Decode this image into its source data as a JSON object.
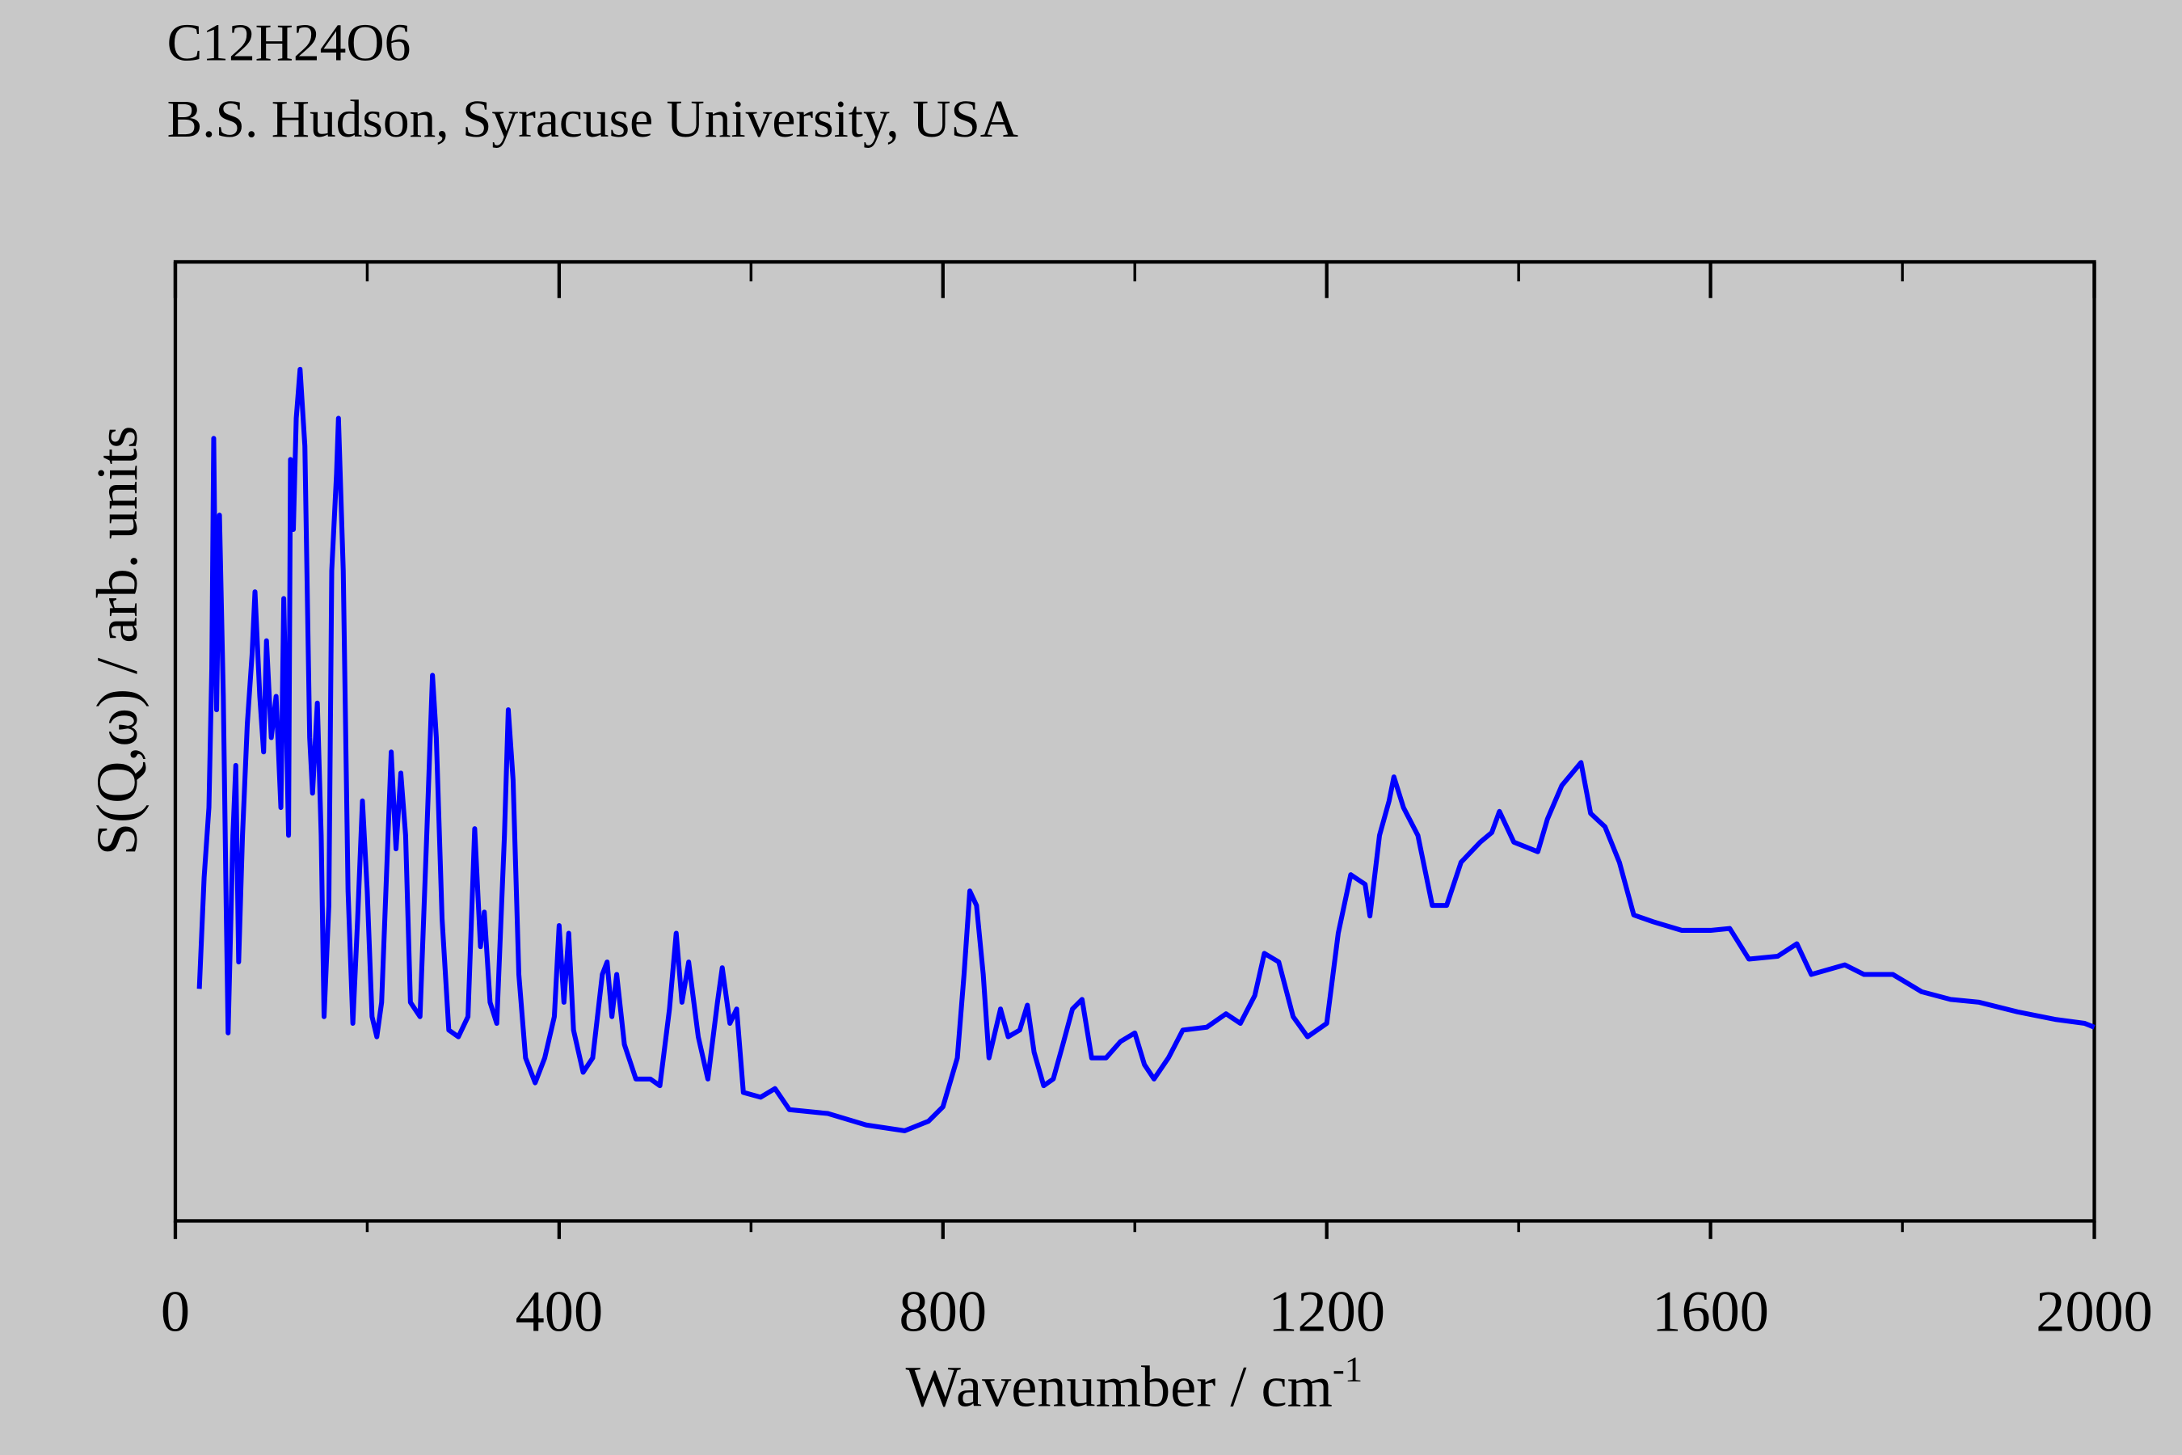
{
  "chart_data": {
    "type": "line",
    "title": "C12H24O6",
    "subtitle": "B.S. Hudson, Syracuse University, USA",
    "xlabel": "Wavenumber / cm",
    "xlabel_superscript": "-1",
    "ylabel": "S(Q,ω) / arb. units",
    "xlim": [
      0,
      2000
    ],
    "xticks": [
      0,
      400,
      800,
      1200,
      1600,
      2000
    ],
    "xminorticks": [
      200,
      600,
      1000,
      1400,
      1800
    ],
    "ylim": [
      0,
      100
    ],
    "series": [
      {
        "name": "C12H24O6",
        "color": "#0000ff",
        "x": [
          25,
          30,
          35,
          38,
          40,
          43,
          46,
          50,
          53,
          55,
          60,
          63,
          66,
          70,
          75,
          80,
          83,
          88,
          92,
          95,
          100,
          105,
          110,
          113,
          118,
          120,
          123,
          126,
          130,
          135,
          140,
          143,
          148,
          152,
          155,
          160,
          163,
          168,
          170,
          175,
          180,
          185,
          190,
          195,
          200,
          205,
          210,
          215,
          225,
          230,
          235,
          240,
          245,
          255,
          262,
          268,
          272,
          278,
          285,
          295,
          305,
          312,
          318,
          322,
          328,
          335,
          343,
          347,
          352,
          358,
          365,
          375,
          385,
          395,
          400,
          405,
          410,
          415,
          425,
          435,
          445,
          450,
          455,
          460,
          468,
          480,
          495,
          505,
          515,
          522,
          528,
          535,
          545,
          555,
          565,
          570,
          578,
          585,
          592,
          610,
          625,
          640,
          680,
          720,
          760,
          785,
          800,
          815,
          822,
          828,
          835,
          842,
          848,
          860,
          868,
          880,
          888,
          895,
          905,
          915,
          925,
          935,
          945,
          955,
          970,
          985,
          1000,
          1010,
          1020,
          1035,
          1050,
          1075,
          1095,
          1110,
          1125,
          1135,
          1150,
          1165,
          1180,
          1200,
          1212,
          1225,
          1240,
          1245,
          1255,
          1265,
          1270,
          1280,
          1295,
          1310,
          1325,
          1340,
          1360,
          1372,
          1380,
          1395,
          1420,
          1430,
          1445,
          1465,
          1475,
          1490,
          1505,
          1520,
          1540,
          1570,
          1600,
          1620,
          1640,
          1670,
          1690,
          1705,
          1740,
          1760,
          1790,
          1820,
          1850,
          1880,
          1920,
          1960,
          1990,
          2000
        ],
        "values": [
          24.2,
          35.8,
          43.1,
          57.6,
          81.6,
          53.3,
          73.6,
          54.7,
          32.9,
          19.6,
          40.2,
          47.5,
          27.0,
          40.2,
          51.8,
          59.1,
          65.6,
          54.7,
          48.9,
          60.5,
          50.4,
          54.7,
          43.1,
          64.9,
          40.2,
          79.4,
          72.1,
          83.7,
          88.8,
          80.8,
          50.4,
          44.6,
          54.0,
          40.2,
          21.3,
          32.9,
          67.8,
          77.9,
          83.7,
          67.8,
          34.4,
          20.6,
          31.5,
          43.8,
          34.4,
          21.3,
          19.2,
          22.8,
          48.9,
          38.8,
          46.7,
          40.2,
          22.8,
          21.3,
          40.2,
          56.9,
          50.4,
          31.5,
          19.9,
          19.2,
          21.3,
          40.9,
          28.6,
          32.2,
          22.8,
          20.6,
          40.2,
          53.3,
          46.0,
          25.7,
          17.0,
          14.4,
          17.0,
          21.3,
          30.8,
          22.8,
          30.0,
          19.9,
          15.5,
          17.0,
          25.7,
          27.0,
          21.3,
          25.7,
          18.4,
          14.8,
          14.8,
          14.1,
          22.1,
          30.0,
          22.8,
          27.0,
          19.2,
          14.8,
          22.8,
          26.4,
          20.6,
          22.1,
          13.4,
          12.9,
          13.8,
          11.6,
          11.2,
          10.0,
          9.4,
          10.4,
          11.9,
          17.0,
          25.7,
          34.4,
          32.9,
          25.7,
          17.0,
          22.1,
          19.2,
          19.9,
          22.5,
          17.6,
          14.1,
          14.8,
          18.4,
          22.1,
          23.1,
          17.0,
          17.0,
          18.7,
          19.6,
          16.3,
          14.8,
          17.0,
          19.9,
          20.2,
          21.6,
          20.6,
          23.5,
          27.9,
          27.0,
          21.3,
          19.2,
          20.6,
          30.0,
          36.1,
          35.1,
          31.8,
          40.2,
          43.8,
          46.3,
          43.1,
          40.2,
          32.9,
          32.9,
          37.4,
          39.5,
          40.5,
          42.7,
          39.5,
          38.5,
          41.9,
          45.4,
          47.8,
          42.5,
          41.1,
          37.4,
          31.9,
          31.2,
          30.3,
          30.3,
          30.5,
          27.3,
          27.6,
          28.9,
          25.7,
          26.7,
          25.7,
          25.7,
          23.9,
          23.1,
          22.8,
          21.8,
          21.0,
          20.6,
          20.2
        ]
      }
    ]
  }
}
